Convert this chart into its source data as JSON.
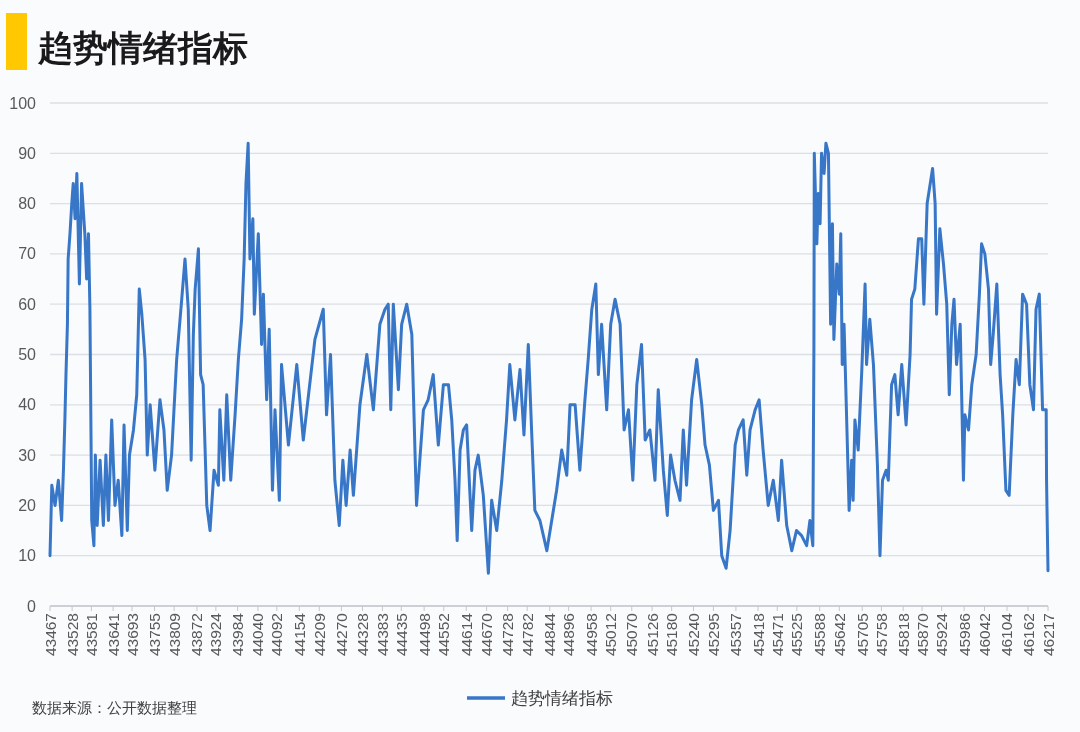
{
  "chart_data": {
    "type": "line",
    "title": "趋势情绪指标",
    "x": [
      43467,
      43472,
      43481,
      43490,
      43499,
      43504,
      43508,
      43511,
      43515,
      43517,
      43522,
      43527,
      43531,
      43536,
      43541,
      43548,
      43554,
      43563,
      43568,
      43573,
      43577,
      43582,
      43588,
      43592,
      43597,
      43605,
      43614,
      43621,
      43628,
      43637,
      43646,
      43655,
      43665,
      43671,
      43680,
      43686,
      43697,
      43706,
      43713,
      43720,
      43729,
      43735,
      43743,
      43756,
      43770,
      43781,
      43790,
      43802,
      43816,
      43830,
      43839,
      43848,
      43856,
      43862,
      43867,
      43876,
      43882,
      43889,
      43899,
      43908,
      43919,
      43931,
      43935,
      43946,
      43954,
      43965,
      43977,
      43986,
      43995,
      44002,
      44007,
      44013,
      44018,
      44026,
      44030,
      44041,
      44050,
      44055,
      44064,
      44071,
      44080,
      44087,
      44099,
      44105,
      44124,
      44147,
      44165,
      44197,
      44220,
      44229,
      44240,
      44252,
      44264,
      44274,
      44283,
      44294,
      44303,
      44321,
      44340,
      44358,
      44376,
      44390,
      44399,
      44406,
      44413,
      44427,
      44436,
      44450,
      44464,
      44473,
      44477,
      44487,
      44496,
      44509,
      44523,
      44537,
      44551,
      44565,
      44574,
      44583,
      44589,
      44597,
      44606,
      44615,
      44629,
      44638,
      44647,
      44661,
      44675,
      44684,
      44698,
      44712,
      44725,
      44734,
      44748,
      44762,
      44773,
      44785,
      44794,
      44803,
      44817,
      44836,
      44863,
      44877,
      44891,
      44900,
      44914,
      44927,
      44941,
      44950,
      44960,
      44971,
      44978,
      44987,
      45001,
      45012,
      45024,
      45038,
      45049,
      45061,
      45073,
      45084,
      45097,
      45107,
      45120,
      45134,
      45143,
      45157,
      45168,
      45177,
      45189,
      45203,
      45212,
      45221,
      45235,
      45249,
      45263,
      45272,
      45284,
      45295,
      45309,
      45318,
      45330,
      45341,
      45355,
      45364,
      45377,
      45387,
      45396,
      45410,
      45421,
      45432,
      45446,
      45460,
      45474,
      45483,
      45497,
      45511,
      45524,
      45538,
      45552,
      45561,
      45569,
      45572,
      45573,
      45580,
      45584,
      45589,
      45593,
      45600,
      45605,
      45612,
      45618,
      45623,
      45627,
      45635,
      45642,
      45646,
      45650,
      45655,
      45660,
      45669,
      45676,
      45680,
      45685,
      45694,
      45704,
      45713,
      45717,
      45726,
      45736,
      45747,
      45754,
      45761,
      45771,
      45777,
      45786,
      45795,
      45804,
      45814,
      45826,
      45837,
      45841,
      45850,
      45860,
      45869,
      45875,
      45884,
      45899,
      45906,
      45910,
      45919,
      45929,
      45938,
      45945,
      45952,
      45958,
      45965,
      45975,
      45984,
      45988,
      45998,
      46007,
      46019,
      46028,
      46034,
      46043,
      46053,
      46059,
      46066,
      46076,
      46085,
      46092,
      46101,
      46110,
      46120,
      46129,
      46138,
      46147,
      46158,
      46167,
      46177,
      46184,
      46193,
      46202,
      46212,
      46213,
      46217
    ],
    "series": [
      {
        "name": "趋势情绪指标",
        "color": "#3876c8",
        "values": [
          10,
          24,
          20,
          25,
          17,
          27,
          37,
          46,
          56,
          69,
          74,
          80,
          84,
          77,
          86,
          64,
          84,
          74,
          65,
          74,
          59,
          17,
          12,
          30,
          16,
          29,
          16,
          30,
          17,
          37,
          20,
          25,
          14,
          36,
          15,
          30,
          35,
          42,
          63,
          58,
          49,
          30,
          40,
          27,
          41,
          35,
          23,
          30,
          49,
          61,
          69,
          59,
          29,
          54,
          63,
          71,
          46,
          44,
          20,
          15,
          27,
          24,
          39,
          25,
          42,
          25,
          38,
          49,
          57,
          69,
          84,
          92,
          69,
          77,
          58,
          74,
          52,
          62,
          41,
          55,
          23,
          39,
          21,
          48,
          32,
          48,
          33,
          53,
          59,
          38,
          50,
          25,
          16,
          29,
          20,
          31,
          22,
          40,
          50,
          39,
          56,
          59,
          60,
          39,
          60,
          43,
          56,
          60,
          54,
          30,
          20,
          30,
          39,
          41,
          46,
          32,
          44,
          44,
          37,
          25,
          13,
          31,
          35,
          36,
          15,
          27,
          30,
          22,
          6.5,
          21,
          15,
          25,
          37,
          48,
          37,
          47,
          34,
          52,
          35,
          19,
          17,
          11,
          23,
          31,
          26,
          40,
          40,
          27,
          41,
          49,
          59,
          64,
          46,
          56,
          39,
          56,
          61,
          56,
          35,
          39,
          25,
          44,
          52,
          33,
          35,
          25,
          43,
          27,
          18,
          30,
          25,
          21,
          35,
          24,
          41,
          49,
          40,
          32,
          28,
          19,
          21,
          10,
          7.5,
          15,
          32,
          35,
          37,
          26,
          35,
          39,
          41,
          31,
          20,
          25,
          17,
          29,
          16,
          11,
          15,
          14,
          12,
          17,
          12,
          52,
          90,
          72,
          82,
          76,
          90,
          86,
          92,
          90,
          56,
          76,
          53,
          68,
          62,
          74,
          48,
          56,
          43,
          19,
          29,
          21,
          37,
          31,
          47,
          64,
          48,
          57,
          48,
          28,
          10,
          25,
          27,
          25,
          44,
          46,
          38,
          48,
          36,
          50,
          61,
          63,
          73,
          73,
          60,
          80,
          87,
          80,
          58,
          75,
          68,
          60,
          42,
          56,
          61,
          48,
          56,
          25,
          38,
          35,
          44,
          50,
          62,
          72,
          70,
          63,
          48,
          54,
          64,
          46,
          38,
          23,
          22,
          38,
          49,
          44,
          62,
          60,
          44,
          39,
          59,
          62,
          39,
          39,
          25,
          7
        ]
      }
    ],
    "xlim": [
      43467,
      46217
    ],
    "xticks": [
      43467,
      43528,
      43581,
      43641,
      43693,
      43755,
      43809,
      43872,
      43924,
      43984,
      44040,
      44092,
      44154,
      44209,
      44270,
      44328,
      44383,
      44435,
      44498,
      44552,
      44614,
      44670,
      44728,
      44782,
      44844,
      44896,
      44958,
      45012,
      45070,
      45126,
      45180,
      45240,
      45295,
      45357,
      45418,
      45471,
      45525,
      45588,
      45642,
      45705,
      45758,
      45818,
      45870,
      45924,
      45986,
      46042,
      46104,
      46162,
      46217
    ],
    "ylim": [
      0,
      100
    ],
    "yticks": [
      0,
      10,
      20,
      30,
      40,
      50,
      60,
      70,
      80,
      90,
      100
    ],
    "grid": "y",
    "legend": "bottom",
    "annotations": [
      "数据来源：公开数据整理"
    ]
  }
}
